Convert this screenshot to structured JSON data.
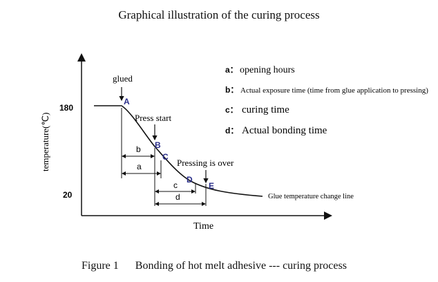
{
  "title": "Graphical illustration of the curing process",
  "caption": "Figure 1      Bonding of hot melt adhesive --- curing process",
  "axes": {
    "ylabel": "temperature(℃)",
    "xlabel": "Time",
    "y_ticks": [
      "180",
      "20"
    ]
  },
  "legend": [
    {
      "key": "a：",
      "text": "opening hours"
    },
    {
      "key": "b：",
      "text": "Actual exposure time (time from glue application to pressing)"
    },
    {
      "key": "c：",
      "text": "curing time"
    },
    {
      "key": "d：",
      "text": "Actual bonding time"
    }
  ],
  "annotations": {
    "glued": "glued",
    "press_start": "Press start",
    "pressing_over": "Pressing is over",
    "curve_label": "Glue temperature change line"
  },
  "points": [
    "A",
    "B",
    "C",
    "D",
    "E"
  ],
  "intervals": [
    "b",
    "a",
    "c",
    "d"
  ],
  "colors": {
    "line": "#111111",
    "point_labels": "#2b2f8a"
  }
}
